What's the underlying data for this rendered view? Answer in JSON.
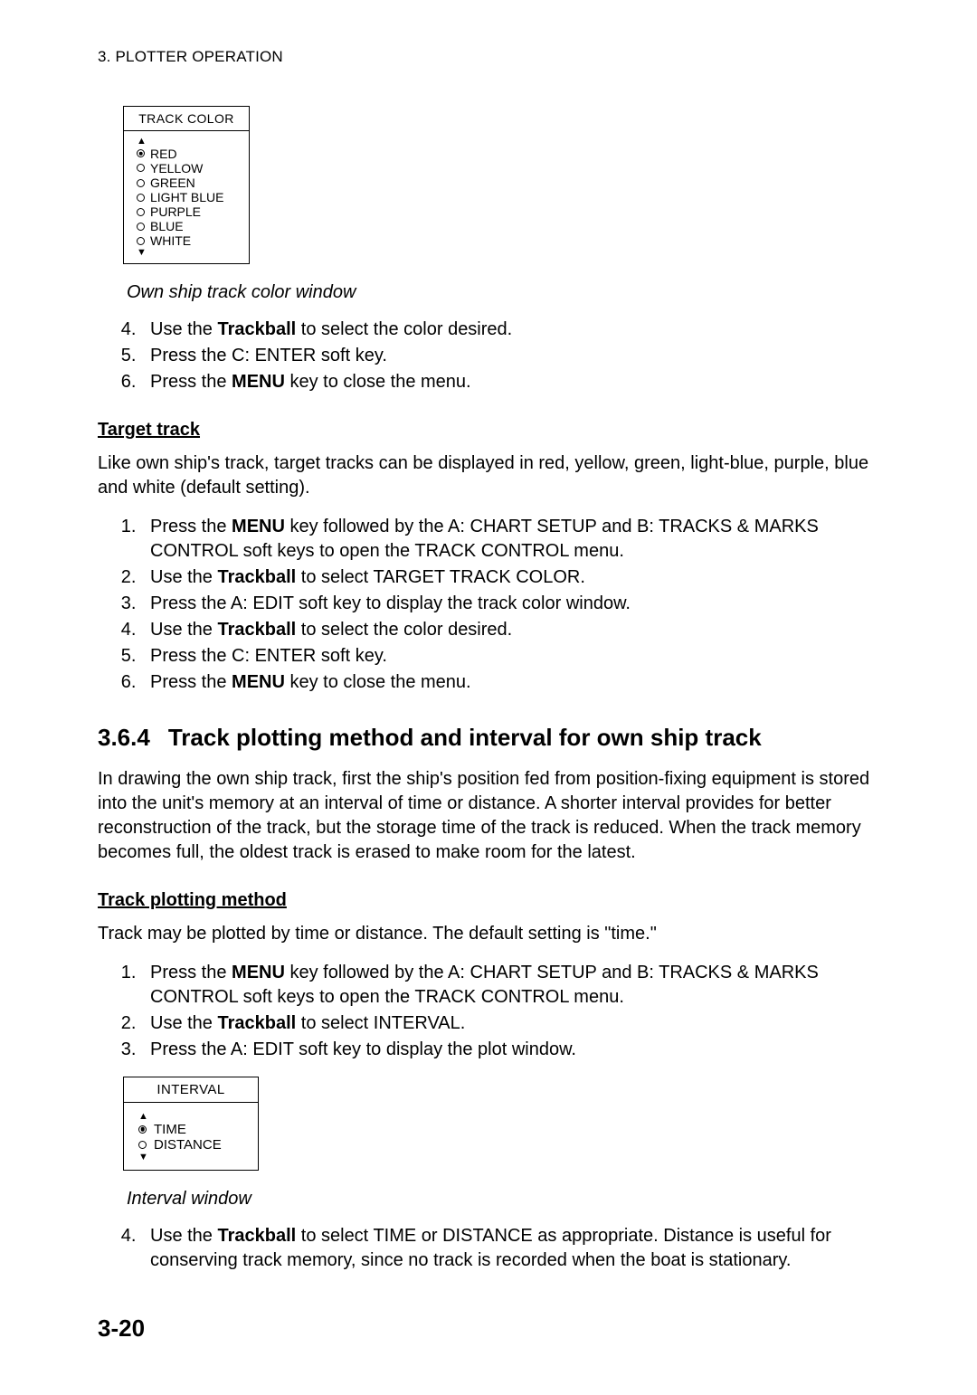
{
  "header": "3. PLOTTER OPERATION",
  "trackColorBox": {
    "title": "TRACK COLOR",
    "options": [
      "RED",
      "YELLOW",
      "GREEN",
      "LIGHT BLUE",
      "PURPLE",
      "BLUE",
      "WHITE"
    ],
    "selected_index": 0
  },
  "trackColorCaption": "Own ship track color window",
  "stepsA": [
    [
      "Use the ",
      "Trackball",
      " to select the color desired."
    ],
    [
      "Press the C: ENTER soft key."
    ],
    [
      "Press the ",
      "MENU",
      " key to close the menu."
    ]
  ],
  "stepsA_start": 4,
  "targetTrack": {
    "heading": "Target track",
    "para": "Like own ship's track, target tracks can be displayed in red, yellow, green, light-blue, purple, blue and white (default setting)."
  },
  "stepsB": [
    [
      "Press the ",
      "MENU",
      " key followed by the A: CHART SETUP and B: TRACKS & MARKS CONTROL soft keys to open the TRACK CONTROL menu."
    ],
    [
      "Use the ",
      "Trackball",
      " to select TARGET TRACK COLOR."
    ],
    [
      "Press the A: EDIT soft key to display the track color window."
    ],
    [
      "Use the ",
      "Trackball",
      " to select the color desired."
    ],
    [
      "Press the C: ENTER soft key."
    ],
    [
      "Press the ",
      "MENU",
      " key to close the menu."
    ]
  ],
  "section": {
    "num": "3.6.4",
    "title": "Track plotting method and interval for own ship track",
    "para": "In drawing the own ship track, first the ship's position fed from position-fixing equipment is stored into the unit's memory at an interval of time or distance. A shorter interval provides for better reconstruction of the track, but the storage time of the track is reduced. When the track memory becomes full, the oldest track is erased to make room for the latest."
  },
  "plotMethod": {
    "heading": "Track plotting method",
    "para": "Track may be plotted by time or distance. The default setting is \"time.\""
  },
  "stepsC": [
    [
      "Press the ",
      "MENU",
      " key followed by the A: CHART SETUP and B: TRACKS & MARKS CONTROL soft keys to open the TRACK CONTROL menu."
    ],
    [
      "Use the ",
      "Trackball",
      " to select INTERVAL."
    ],
    [
      "Press the A: EDIT soft key to display the plot window."
    ]
  ],
  "intervalBox": {
    "title": "INTERVAL",
    "options": [
      "TIME",
      "DISTANCE"
    ],
    "selected_index": 0
  },
  "intervalCaption": "Interval window",
  "stepsD": [
    [
      "Use the ",
      "Trackball",
      " to select TIME or DISTANCE as appropriate. Distance is useful for conserving track memory, since no track is recorded when the boat is stationary."
    ]
  ],
  "stepsD_start": 4,
  "pagenum": "3-20"
}
